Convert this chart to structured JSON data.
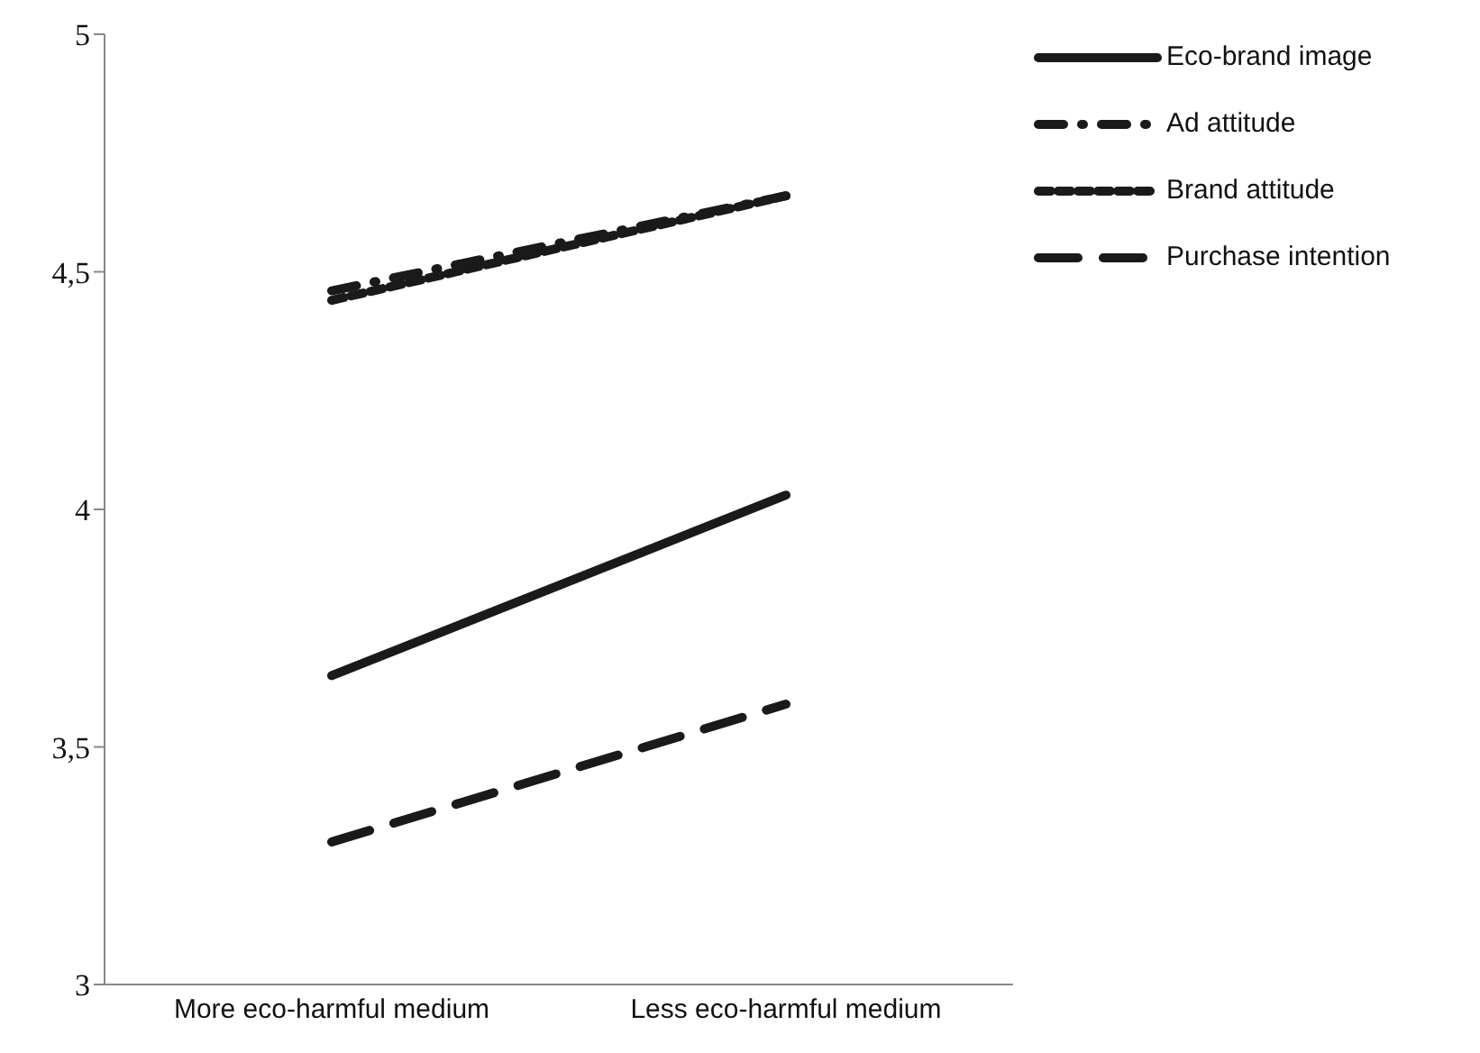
{
  "chart_data": {
    "type": "line",
    "categories": [
      "More eco-harmful  medium",
      "Less eco-harmful medium"
    ],
    "series": [
      {
        "name": "Eco-brand image",
        "color": "#1a1a1a",
        "values": [
          3.65,
          4.03
        ],
        "line_style": "solid"
      },
      {
        "name": "Ad attitude",
        "color": "#1a1a1a",
        "values": [
          4.46,
          4.66
        ],
        "line_style": "dashdot"
      },
      {
        "name": "Brand attitude",
        "color": "#1a1a1a",
        "values": [
          4.44,
          4.66
        ],
        "line_style": "dashed"
      },
      {
        "name": "Purchase intention",
        "color": "#1a1a1a",
        "values": [
          3.3,
          3.59
        ],
        "line_style": "longdash"
      }
    ],
    "ylim": [
      3,
      5
    ],
    "yticks": [
      3,
      {
        "value": 3.5,
        "label": "3,5"
      },
      4,
      {
        "value": 4.5,
        "label": "4,5"
      },
      5
    ],
    "grid": false,
    "legend": "top right",
    "marker": "none"
  }
}
